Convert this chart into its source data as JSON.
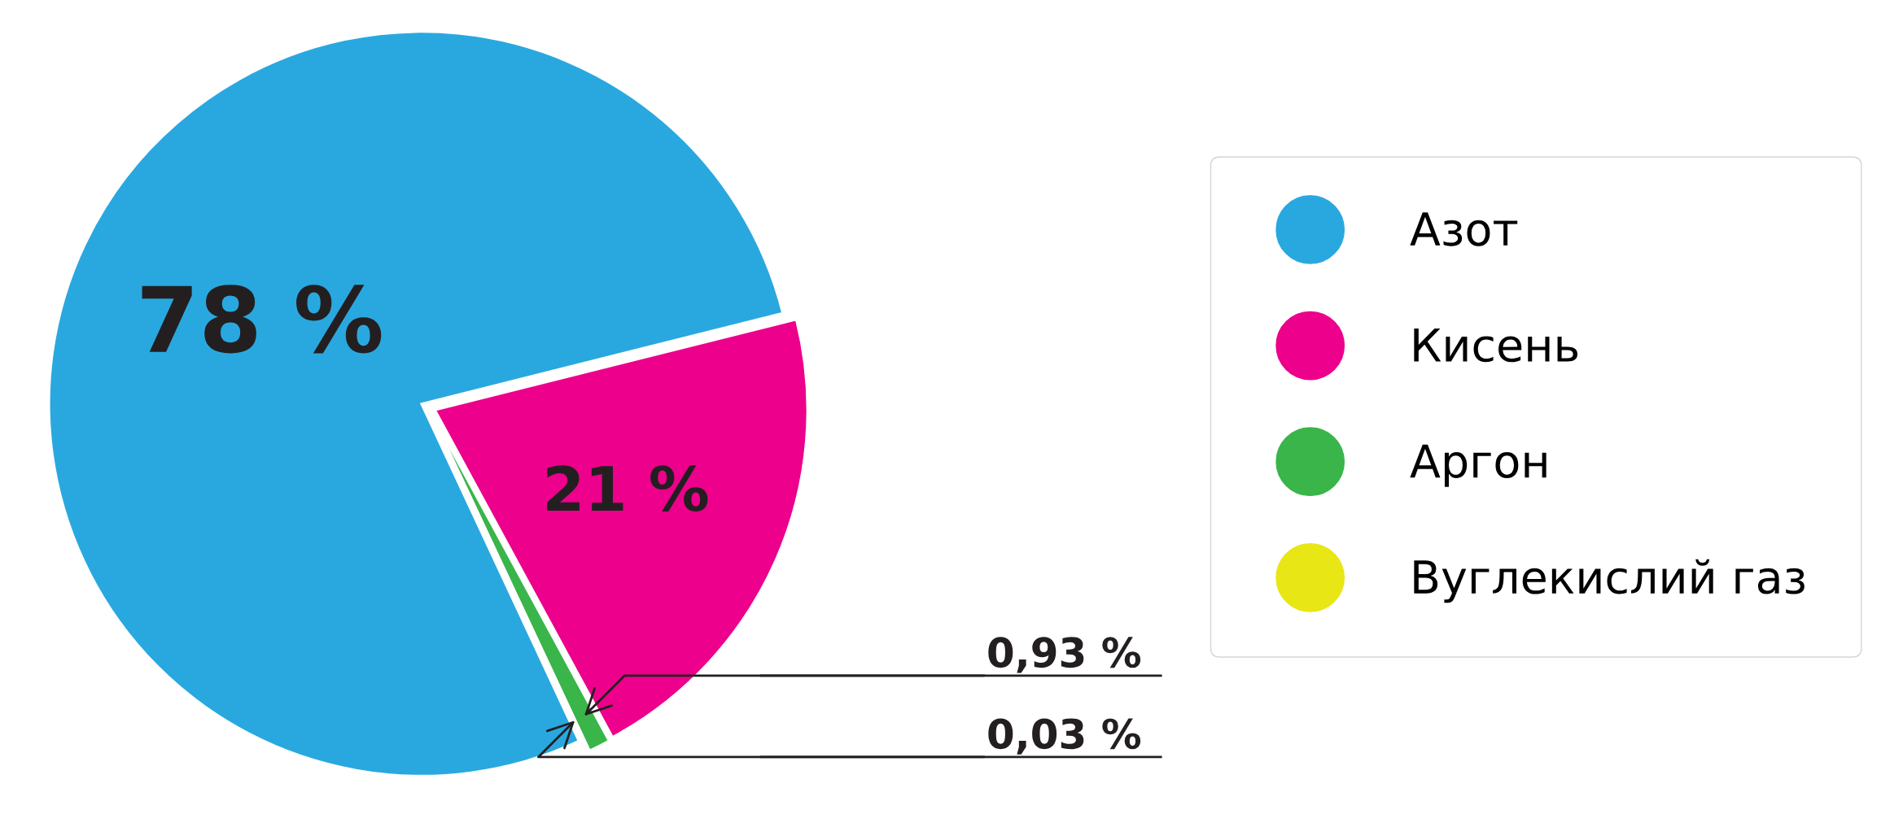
{
  "chart_data": {
    "type": "pie",
    "categories": [
      "Азот",
      "Кисень",
      "Аргон",
      "Вуглекислий газ"
    ],
    "values": [
      78,
      21,
      0.93,
      0.03
    ],
    "value_labels": [
      "78 %",
      "21 %",
      "0,93 %",
      "0,03 %"
    ],
    "colors": [
      "#29a8e0",
      "#ec008c",
      "#39b54a",
      "#e8e615"
    ],
    "legend": "right"
  }
}
